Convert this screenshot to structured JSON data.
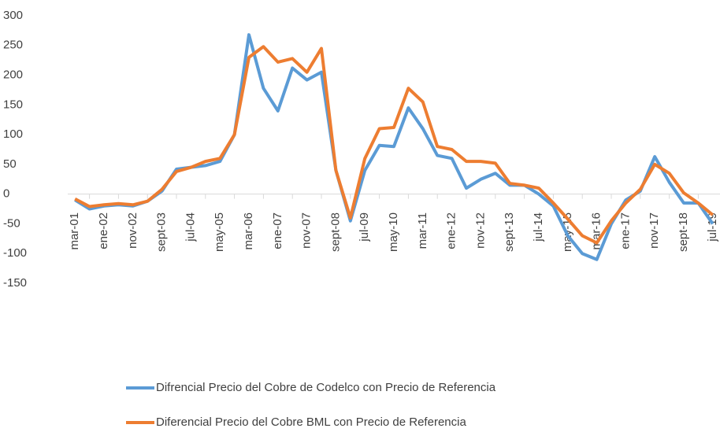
{
  "chart_data": {
    "type": "line",
    "categories": [
      "mar-01",
      null,
      "ene-02",
      null,
      "nov-02",
      null,
      "sept-03",
      null,
      "jul-04",
      null,
      "may-05",
      null,
      "mar-06",
      null,
      "ene-07",
      null,
      "nov-07",
      null,
      "sept-08",
      null,
      "jul-09",
      null,
      "may-10",
      null,
      "mar-11",
      null,
      "ene-12",
      null,
      "nov-12",
      null,
      "sept-13",
      null,
      "jul-14",
      null,
      "may-15",
      null,
      "mar-16",
      null,
      "ene-17",
      null,
      "nov-17",
      null,
      "sept-18",
      null,
      "jul-19"
    ],
    "series": [
      {
        "name": "Difrencial Precio del Cobre de Codelco con Precio de Referencia",
        "color": "#5b9bd5",
        "values": [
          -10,
          -25,
          -20,
          -18,
          -20,
          -12,
          5,
          42,
          45,
          48,
          55,
          100,
          268,
          178,
          140,
          212,
          192,
          205,
          40,
          -45,
          40,
          82,
          80,
          145,
          110,
          65,
          60,
          10,
          25,
          35,
          15,
          15,
          0,
          -20,
          -70,
          -100,
          -110,
          -50,
          -10,
          5,
          63,
          20,
          -15,
          -15,
          -50
        ]
      },
      {
        "name": "Diferencial Precio del Cobre BML con Precio de Referencia",
        "color": "#ed7d31",
        "values": [
          -8,
          -21,
          -18,
          -16,
          -18,
          -12,
          8,
          38,
          45,
          55,
          60,
          100,
          230,
          248,
          222,
          228,
          205,
          245,
          40,
          -40,
          60,
          110,
          112,
          178,
          155,
          80,
          75,
          55,
          55,
          52,
          18,
          15,
          10,
          -15,
          -42,
          -70,
          -82,
          -45,
          -15,
          8,
          50,
          35,
          2,
          -15,
          -35
        ]
      }
    ],
    "ylim": [
      -150,
      300
    ],
    "yticks": [
      -150,
      -100,
      -50,
      0,
      50,
      100,
      150,
      200,
      250,
      300
    ],
    "grid": false
  }
}
